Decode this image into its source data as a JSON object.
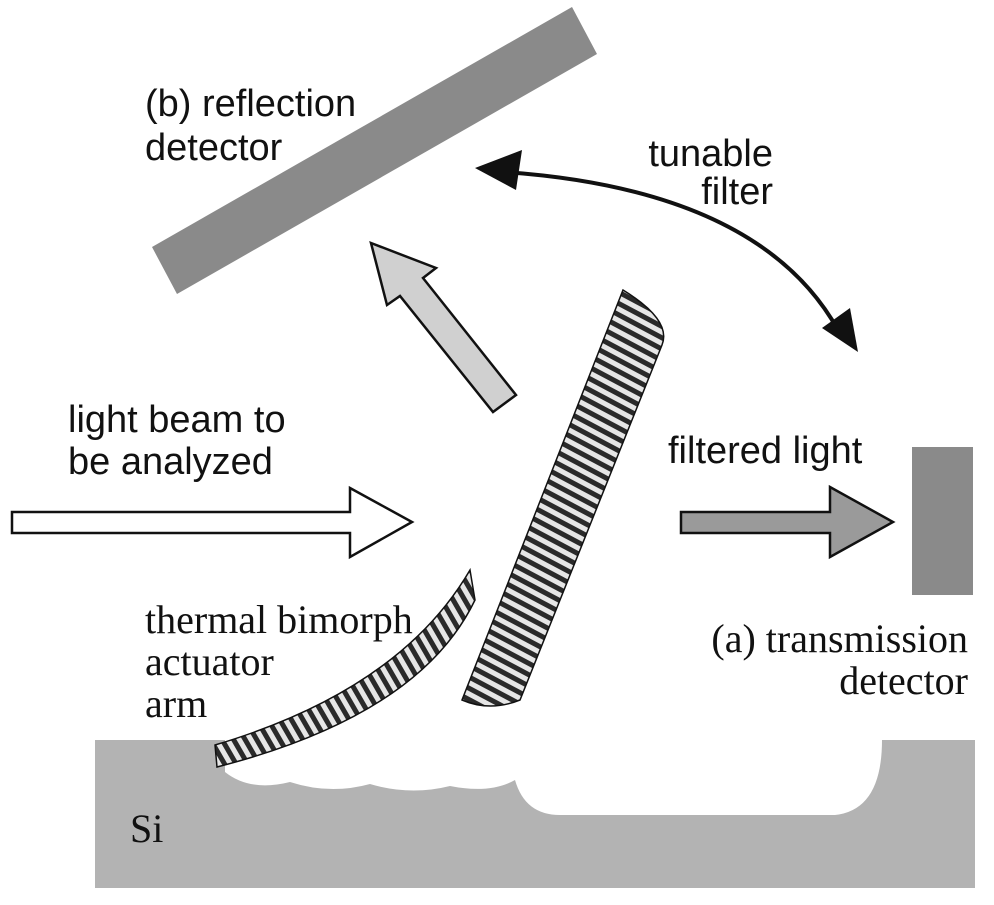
{
  "labels": {
    "reflection_detector_line1": "(b) reflection",
    "reflection_detector_line2": "detector",
    "tunable_filter_line1": "tunable",
    "tunable_filter_line2": "filter",
    "light_beam_line1": "light beam to",
    "light_beam_line2": "be analyzed",
    "filtered_light": "filtered light",
    "actuator_line1": "thermal bimorph",
    "actuator_line2": "actuator",
    "actuator_line3": "arm",
    "transmission_detector_line1": "(a) transmission",
    "transmission_detector_line2": "detector",
    "substrate": "Si"
  },
  "colors": {
    "detector": "#8a8a8a",
    "substrate": "#b3b3b3",
    "reflected_arrow": "#d0d0d0",
    "incident_arrow": "#ffffff",
    "filtered_arrow": "#9a9a9a",
    "stripe_dark": "#2a2a2a",
    "stripe_light": "#e6e6e6",
    "outline": "#111111"
  }
}
